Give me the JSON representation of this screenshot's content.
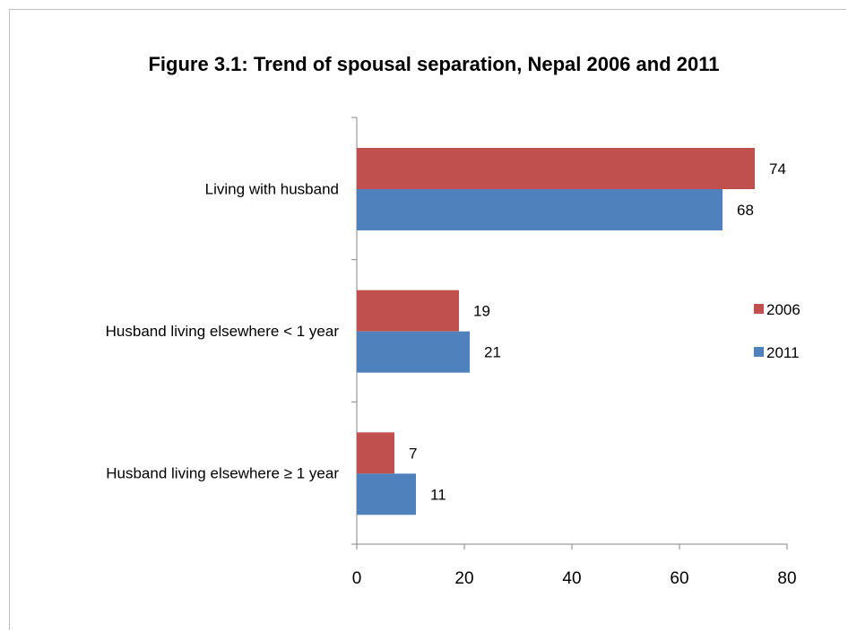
{
  "chart_data": {
    "type": "bar",
    "orientation": "horizontal",
    "title": "Figure 3.1: Trend of spousal separation, Nepal 2006 and 2011",
    "categories": [
      "Living with husband",
      "Husband living elsewhere < 1 year",
      "Husband living elsewhere ≥ 1 year"
    ],
    "series": [
      {
        "name": "2006",
        "color": "#c0504d",
        "values": [
          74,
          19,
          7
        ]
      },
      {
        "name": "2011",
        "color": "#4f81bd",
        "values": [
          68,
          21,
          11
        ]
      }
    ],
    "xlim": [
      0,
      80
    ],
    "xticks": [
      "0",
      "20",
      "40",
      "60",
      "80"
    ],
    "xlabel": "",
    "ylabel": "",
    "grid": false,
    "legend_position": "right"
  }
}
